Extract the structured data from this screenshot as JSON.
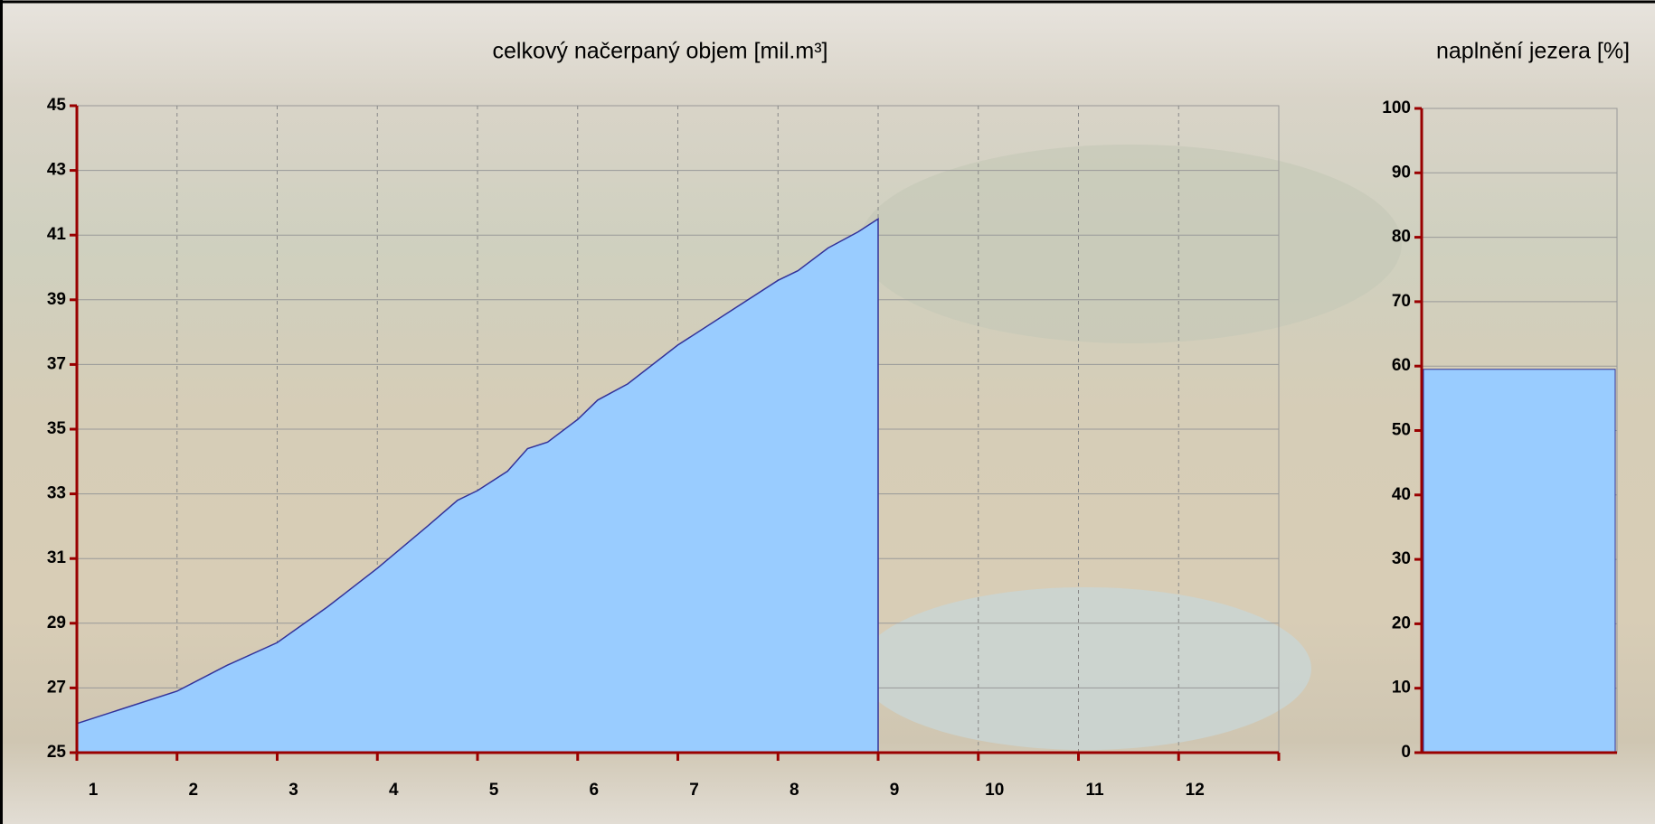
{
  "chart_data": [
    {
      "type": "area",
      "title": "celkový načerpaný objem [mil.m³]",
      "x": [
        1,
        1.5,
        2,
        2.5,
        3,
        3.5,
        4,
        4.5,
        4.8,
        5,
        5.3,
        5.5,
        5.7,
        6,
        6.2,
        6.5,
        7,
        7.5,
        8,
        8.2,
        8.5,
        8.8,
        9
      ],
      "values": [
        25.9,
        26.4,
        26.9,
        27.7,
        28.4,
        29.5,
        30.7,
        32.0,
        32.8,
        33.1,
        33.7,
        34.4,
        34.6,
        35.3,
        35.9,
        36.4,
        37.6,
        38.6,
        39.6,
        39.9,
        40.6,
        41.1,
        41.5
      ],
      "color": "#99ccff",
      "line_color": "#333399",
      "xlim": [
        1,
        13
      ],
      "xticks": [
        1,
        2,
        3,
        4,
        5,
        6,
        7,
        8,
        9,
        10,
        11,
        12
      ],
      "ylim": [
        25,
        45
      ],
      "yticks": [
        25,
        27,
        29,
        31,
        33,
        35,
        37,
        39,
        41,
        43,
        45
      ],
      "grid": true
    },
    {
      "type": "bar",
      "title": "naplnění jezera [%]",
      "categories": [
        null
      ],
      "values": [
        59.5
      ],
      "color": "#99ccff",
      "ylim": [
        0,
        100
      ],
      "yticks": [
        0,
        10,
        20,
        30,
        40,
        50,
        60,
        70,
        80,
        90,
        100
      ],
      "grid": true
    }
  ]
}
